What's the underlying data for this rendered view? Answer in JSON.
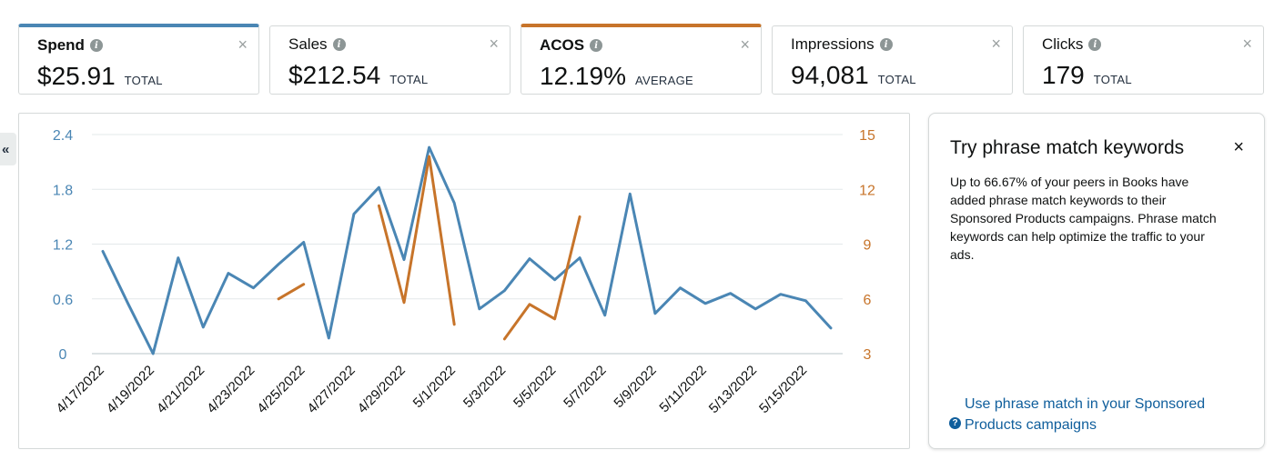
{
  "metrics": [
    {
      "title": "Spend",
      "value": "$25.91",
      "unit": "TOTAL",
      "accent": "#4a86b4",
      "bold": true
    },
    {
      "title": "Sales",
      "value": "$212.54",
      "unit": "TOTAL",
      "accent": null,
      "bold": false
    },
    {
      "title": "ACOS",
      "value": "12.19%",
      "unit": "AVERAGE",
      "accent": "#c7742a",
      "bold": true
    },
    {
      "title": "Impressions",
      "value": "94,081",
      "unit": "TOTAL",
      "accent": null,
      "bold": false
    },
    {
      "title": "Clicks",
      "value": "179",
      "unit": "TOTAL",
      "accent": null,
      "bold": false
    }
  ],
  "collapse_glyph": "«",
  "close_glyph": "×",
  "info_glyph": "i",
  "help_glyph": "?",
  "promo": {
    "title": "Try phrase match keywords",
    "body": "Up to 66.67% of your peers in Books have added phrase match keywords to their Sponsored Products campaigns. Phrase match keywords can help optimize the traffic to your ads.",
    "link": "Use phrase match in your Sponsored Products campaigns"
  },
  "chart_data": {
    "type": "line",
    "x": [
      "4/17/2022",
      "4/18/2022",
      "4/19/2022",
      "4/20/2022",
      "4/21/2022",
      "4/22/2022",
      "4/23/2022",
      "4/24/2022",
      "4/25/2022",
      "4/26/2022",
      "4/27/2022",
      "4/28/2022",
      "4/29/2022",
      "4/30/2022",
      "5/1/2022",
      "5/2/2022",
      "5/3/2022",
      "5/4/2022",
      "5/5/2022",
      "5/6/2022",
      "5/7/2022",
      "5/8/2022",
      "5/9/2022",
      "5/10/2022",
      "5/11/2022",
      "5/12/2022",
      "5/13/2022",
      "5/14/2022",
      "5/15/2022",
      "5/16/2022"
    ],
    "tick_labels": [
      "4/17/2022",
      "4/19/2022",
      "4/21/2022",
      "4/23/2022",
      "4/25/2022",
      "4/27/2022",
      "4/29/2022",
      "5/1/2022",
      "5/3/2022",
      "5/5/2022",
      "5/7/2022",
      "5/9/2022",
      "5/11/2022",
      "5/13/2022",
      "5/15/2022"
    ],
    "left_axis": {
      "ticks": [
        "0",
        "0.6",
        "1.2",
        "1.8",
        "2.4"
      ],
      "range": [
        0,
        2.4
      ],
      "color": "#4a86b4"
    },
    "right_axis": {
      "ticks": [
        "3",
        "6",
        "9",
        "12",
        "15"
      ],
      "range": [
        3,
        15
      ],
      "color": "#c7742a"
    },
    "series": [
      {
        "axis": "left",
        "color": "#4a86b4",
        "values": [
          1.12,
          0.55,
          0.0,
          1.05,
          0.29,
          0.88,
          0.72,
          0.98,
          1.22,
          0.17,
          1.53,
          1.82,
          1.03,
          2.26,
          1.65,
          0.49,
          0.69,
          1.04,
          0.81,
          1.05,
          0.42,
          1.75,
          0.44,
          0.72,
          0.55,
          0.66,
          0.49,
          0.65,
          0.58,
          0.28
        ]
      },
      {
        "axis": "right",
        "color": "#c7742a",
        "values": [
          null,
          null,
          null,
          null,
          null,
          null,
          null,
          6.0,
          6.8,
          null,
          null,
          11.1,
          5.8,
          13.8,
          4.6,
          null,
          3.8,
          5.7,
          4.9,
          10.5,
          null,
          null,
          null,
          null,
          null,
          null,
          null,
          null,
          null,
          null
        ]
      }
    ],
    "grid": true
  }
}
